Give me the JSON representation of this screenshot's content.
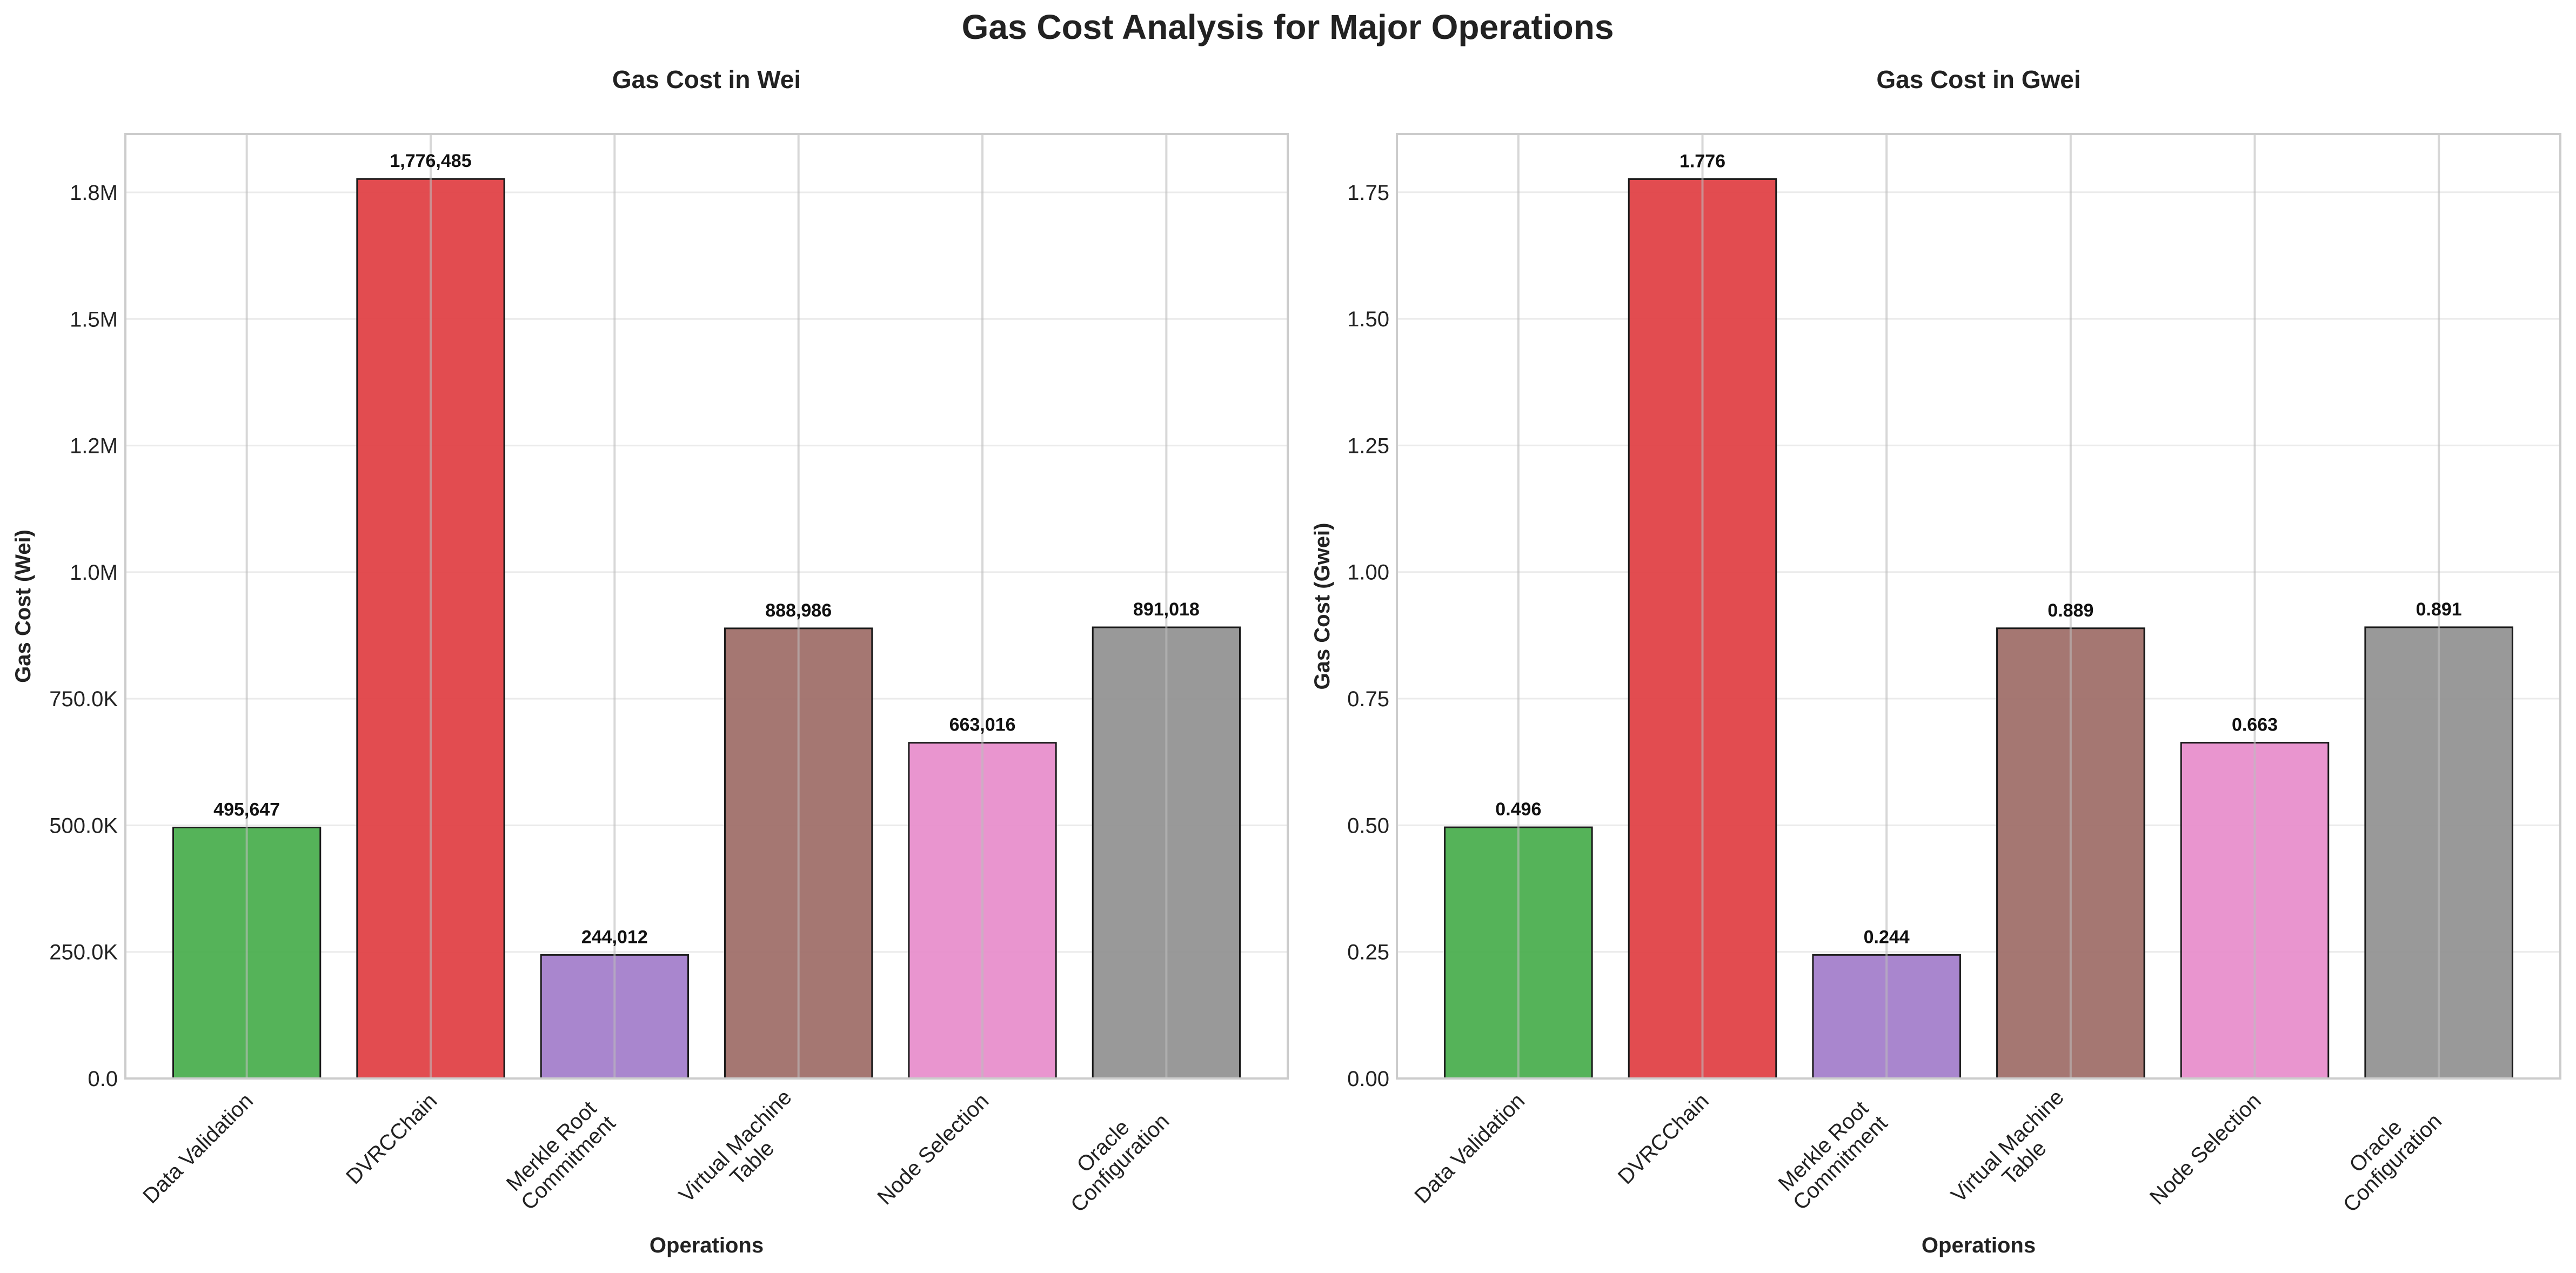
{
  "figure": {
    "title": "Gas Cost Analysis for Major Operations"
  },
  "chart_data": [
    {
      "type": "bar",
      "title": "Gas Cost in Wei",
      "xlabel": "Operations",
      "ylabel": "Gas Cost (Wei)",
      "categories": [
        "Data Validation",
        "DVRCChain",
        "Merkle Root Commitment",
        "Virtual Machine Table",
        "Node Selection",
        "Oracle Configuration"
      ],
      "category_lines": [
        [
          "Data Validation"
        ],
        [
          "DVRCChain"
        ],
        [
          "Merkle Root",
          "Commitment"
        ],
        [
          "Virtual Machine",
          "Table"
        ],
        [
          "Node Selection"
        ],
        [
          "Oracle",
          "Configuration"
        ]
      ],
      "values": [
        495647,
        1776485,
        244012,
        888986,
        663016,
        891018
      ],
      "value_labels": [
        "495,647",
        "1,776,485",
        "244,012",
        "888,986",
        "663,016",
        "891,018"
      ],
      "bar_colors": [
        "#4caf50",
        "#e04247",
        "#a47fcb",
        "#a0706a",
        "#e88fcc",
        "#939393"
      ],
      "ylim": [
        0,
        1865309
      ],
      "yticks": [
        0,
        250000,
        500000,
        750000,
        1000000,
        1250000,
        1500000,
        1750000
      ],
      "ytick_labels": [
        "0.0",
        "250.0K",
        "500.0K",
        "750.0K",
        "1.0M",
        "1.2M",
        "1.5M",
        "1.8M"
      ],
      "grid": true
    },
    {
      "type": "bar",
      "title": "Gas Cost in Gwei",
      "xlabel": "Operations",
      "ylabel": "Gas Cost (Gwei)",
      "categories": [
        "Data Validation",
        "DVRCChain",
        "Merkle Root Commitment",
        "Virtual Machine Table",
        "Node Selection",
        "Oracle Configuration"
      ],
      "category_lines": [
        [
          "Data Validation"
        ],
        [
          "DVRCChain"
        ],
        [
          "Merkle Root",
          "Commitment"
        ],
        [
          "Virtual Machine",
          "Table"
        ],
        [
          "Node Selection"
        ],
        [
          "Oracle",
          "Configuration"
        ]
      ],
      "values": [
        0.496,
        1.776,
        0.244,
        0.889,
        0.663,
        0.891
      ],
      "value_labels": [
        "0.496",
        "1.776",
        "0.244",
        "0.889",
        "0.663",
        "0.891"
      ],
      "bar_colors": [
        "#4caf50",
        "#e04247",
        "#a47fcb",
        "#a0706a",
        "#e88fcc",
        "#939393"
      ],
      "ylim": [
        0,
        1.865
      ],
      "yticks": [
        0,
        0.25,
        0.5,
        0.75,
        1.0,
        1.25,
        1.5,
        1.75
      ],
      "ytick_labels": [
        "0.00",
        "0.25",
        "0.50",
        "0.75",
        "1.00",
        "1.25",
        "1.50",
        "1.75"
      ],
      "grid": true
    }
  ]
}
